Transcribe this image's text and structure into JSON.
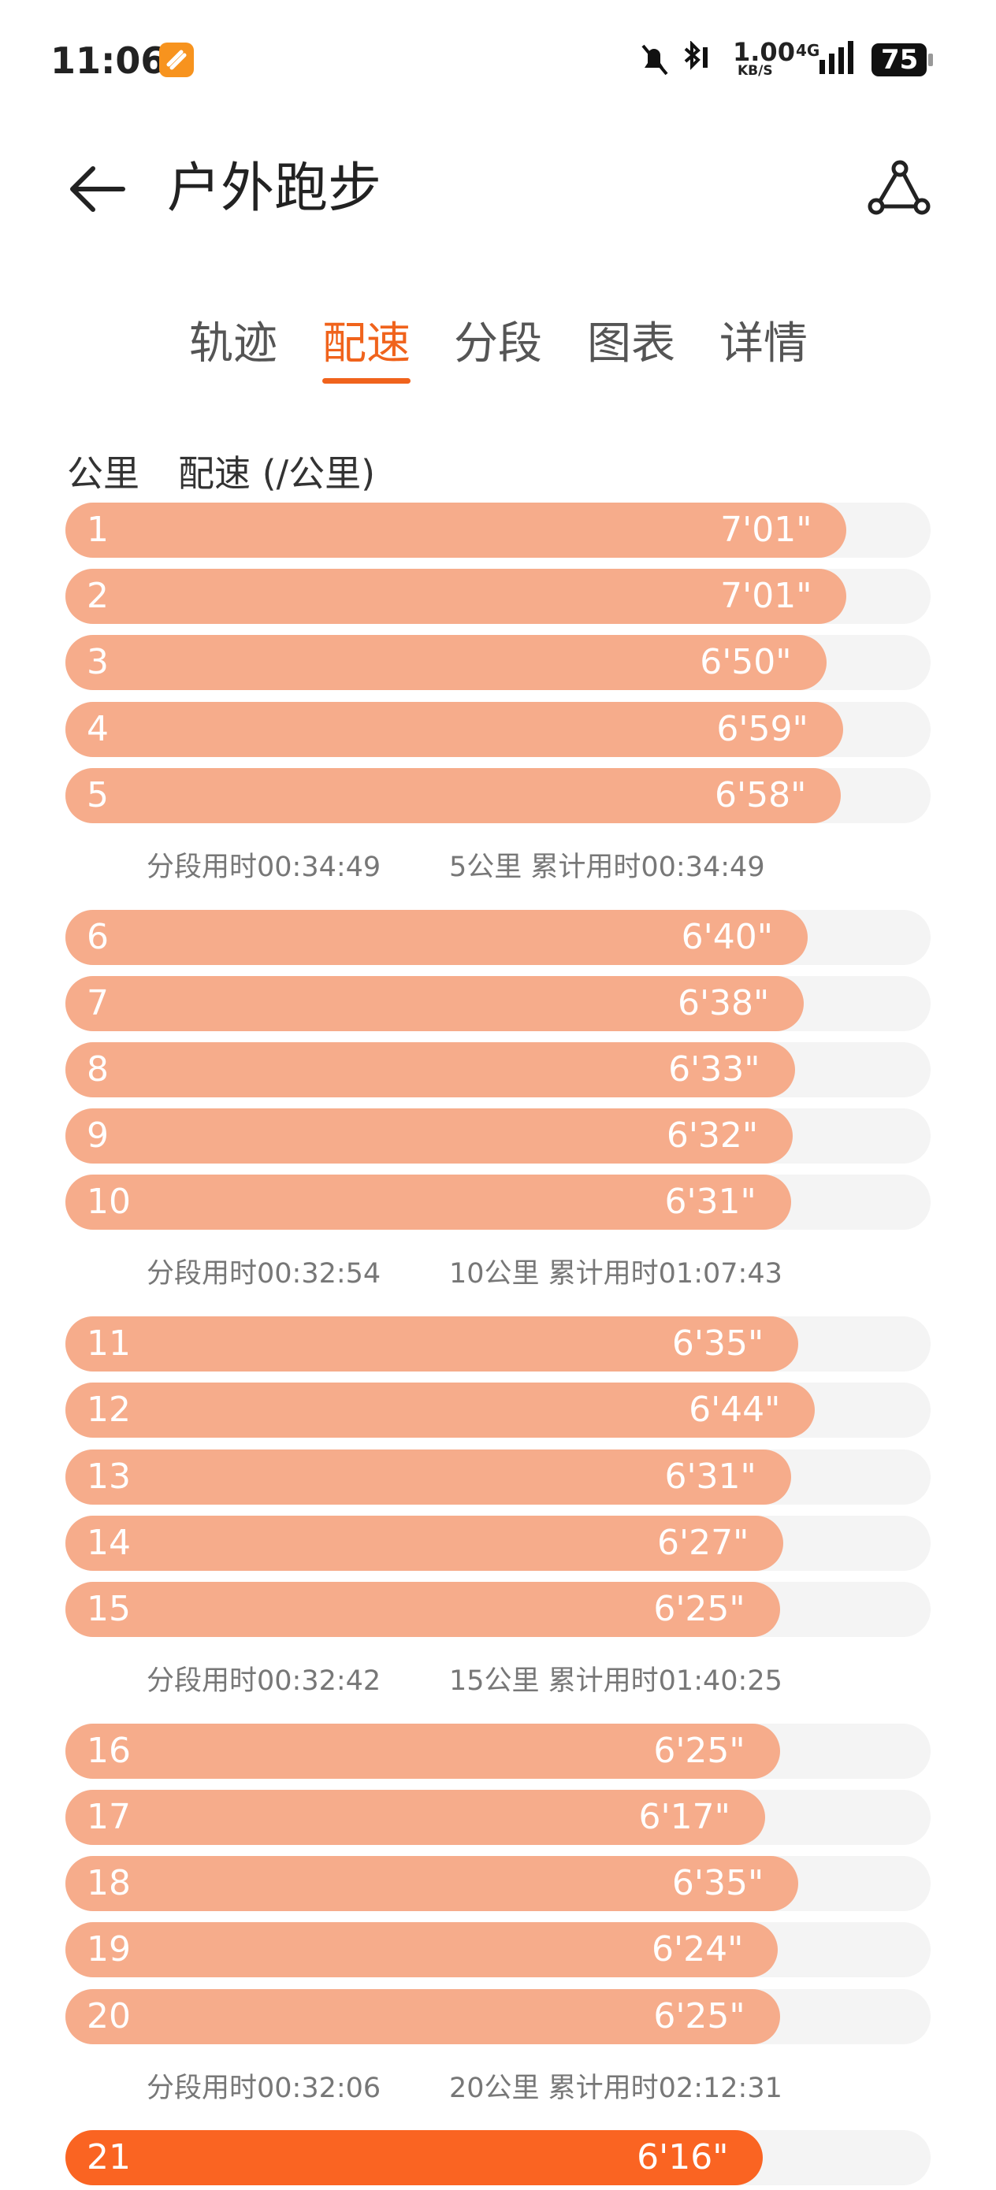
{
  "status_bar": {
    "time": "11:06",
    "network_speed": "1.00",
    "network_unit": "KB/S",
    "signal": "4G",
    "battery": "75"
  },
  "header": {
    "title": "户外跑步"
  },
  "tabs": [
    {
      "label": "轨迹",
      "active": false
    },
    {
      "label": "配速",
      "active": true
    },
    {
      "label": "分段",
      "active": false
    },
    {
      "label": "图表",
      "active": false
    },
    {
      "label": "详情",
      "active": false
    }
  ],
  "columns": {
    "km": "公里",
    "pace": "配速 (/公里)"
  },
  "groups": [
    {
      "splits": [
        {
          "km": 1,
          "pace": {
            "value": 421,
            "label": "7'01\""
          }
        },
        {
          "km": 2,
          "pace": {
            "value": 421,
            "label": "7'01\""
          }
        },
        {
          "km": 3,
          "pace": {
            "value": 410,
            "label": "6'50\""
          }
        },
        {
          "km": 4,
          "pace": {
            "value": 419,
            "label": "6'59\""
          }
        },
        {
          "km": 5,
          "pace": {
            "value": 418,
            "label": "6'58\""
          }
        }
      ],
      "summary": {
        "segment": "分段用时00:34:49",
        "cumulative": "5公里 累计用时00:34:49"
      }
    },
    {
      "splits": [
        {
          "km": 6,
          "pace": {
            "value": 400,
            "label": "6'40\""
          }
        },
        {
          "km": 7,
          "pace": {
            "value": 398,
            "label": "6'38\""
          }
        },
        {
          "km": 8,
          "pace": {
            "value": 393,
            "label": "6'33\""
          }
        },
        {
          "km": 9,
          "pace": {
            "value": 392,
            "label": "6'32\""
          }
        },
        {
          "km": 10,
          "pace": {
            "value": 391,
            "label": "6'31\""
          }
        }
      ],
      "summary": {
        "segment": "分段用时00:32:54",
        "cumulative": "10公里 累计用时01:07:43"
      }
    },
    {
      "splits": [
        {
          "km": 11,
          "pace": {
            "value": 395,
            "label": "6'35\""
          }
        },
        {
          "km": 12,
          "pace": {
            "value": 404,
            "label": "6'44\""
          }
        },
        {
          "km": 13,
          "pace": {
            "value": 391,
            "label": "6'31\""
          }
        },
        {
          "km": 14,
          "pace": {
            "value": 387,
            "label": "6'27\""
          }
        },
        {
          "km": 15,
          "pace": {
            "value": 385,
            "label": "6'25\""
          }
        }
      ],
      "summary": {
        "segment": "分段用时00:32:42",
        "cumulative": "15公里 累计用时01:40:25"
      }
    },
    {
      "splits": [
        {
          "km": 16,
          "pace": {
            "value": 385,
            "label": "6'25\""
          }
        },
        {
          "km": 17,
          "pace": {
            "value": 377,
            "label": "6'17\""
          }
        },
        {
          "km": 18,
          "pace": {
            "value": 395,
            "label": "6'35\""
          }
        },
        {
          "km": 19,
          "pace": {
            "value": 384,
            "label": "6'24\""
          }
        },
        {
          "km": 20,
          "pace": {
            "value": 385,
            "label": "6'25\""
          }
        }
      ],
      "summary": {
        "segment": "分段用时00:32:06",
        "cumulative": "20公里 累计用时02:12:31"
      }
    },
    {
      "splits": [
        {
          "km": 21,
          "pace": {
            "value": 376,
            "label": "6'16\""
          },
          "highlight": true
        }
      ]
    }
  ]
}
